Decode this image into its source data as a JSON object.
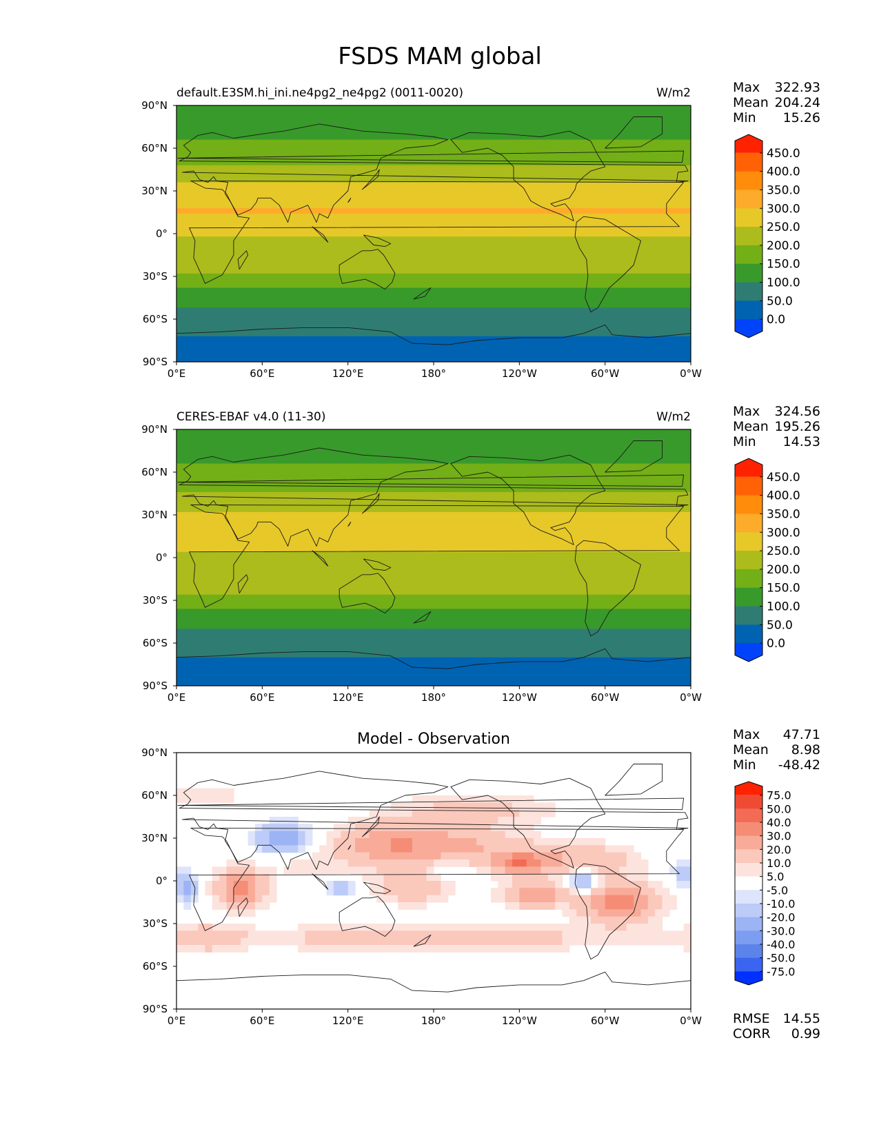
{
  "figure_title": "FSDS MAM global",
  "chart_data": [
    {
      "type": "heatmap",
      "title_left": "default.E3SM.hi_ini.ne4pg2_ne4pg2 (0011-0020)",
      "title_right": "W/m2",
      "stats": {
        "max_label": "Max",
        "max": "322.93",
        "mean_label": "Mean",
        "mean": "204.24",
        "min_label": "Min",
        "min": "15.26"
      },
      "x_ticks": [
        "0°E",
        "60°E",
        "120°E",
        "180°",
        "120°W",
        "60°W",
        "0°W"
      ],
      "y_ticks": [
        "90°N",
        "60°N",
        "30°N",
        "0°",
        "30°S",
        "60°S",
        "90°S"
      ],
      "xlim": [
        0,
        360
      ],
      "ylim": [
        -90,
        90
      ],
      "zonal_profile": {
        "lat": [
          90,
          75,
          65,
          55,
          45,
          35,
          25,
          15,
          5,
          -5,
          -15,
          -25,
          -35,
          -45,
          -55,
          -65,
          -75,
          -90
        ],
        "value": [
          130,
          140,
          150,
          175,
          215,
          255,
          290,
          305,
          270,
          240,
          235,
          215,
          160,
          130,
          90,
          70,
          40,
          30
        ]
      },
      "colorbar": {
        "levels": [
          "450.0",
          "400.0",
          "350.0",
          "300.0",
          "250.0",
          "200.0",
          "150.0",
          "100.0",
          "50.0",
          "0.0"
        ],
        "extend": "both"
      }
    },
    {
      "type": "heatmap",
      "title_left": "CERES-EBAF v4.0 (11-30)",
      "title_right": "W/m2",
      "stats": {
        "max_label": "Max",
        "max": "324.56",
        "mean_label": "Mean",
        "mean": "195.26",
        "min_label": "Min",
        "min": "14.53"
      },
      "x_ticks": [
        "0°E",
        "60°E",
        "120°E",
        "180°",
        "120°W",
        "60°W",
        "0°W"
      ],
      "y_ticks": [
        "90°N",
        "60°N",
        "30°N",
        "0°",
        "30°S",
        "60°S",
        "90°S"
      ],
      "xlim": [
        0,
        360
      ],
      "ylim": [
        -90,
        90
      ],
      "zonal_profile": {
        "lat": [
          90,
          75,
          65,
          55,
          45,
          35,
          25,
          15,
          5,
          -5,
          -15,
          -25,
          -35,
          -45,
          -55,
          -65,
          -75,
          -90
        ],
        "value": [
          130,
          140,
          150,
          170,
          205,
          240,
          275,
          285,
          250,
          225,
          225,
          205,
          150,
          120,
          85,
          60,
          40,
          30
        ]
      },
      "colorbar": {
        "levels": [
          "450.0",
          "400.0",
          "350.0",
          "300.0",
          "250.0",
          "200.0",
          "150.0",
          "100.0",
          "50.0",
          "0.0"
        ],
        "extend": "both"
      }
    },
    {
      "type": "heatmap",
      "title_center": "Model - Observation",
      "stats": {
        "max_label": "Max",
        "max": "47.71",
        "mean_label": "Mean",
        "mean": "8.98",
        "min_label": "Min",
        "min": "-48.42"
      },
      "x_ticks": [
        "0°E",
        "60°E",
        "120°E",
        "180°",
        "120°W",
        "60°W",
        "0°W"
      ],
      "y_ticks": [
        "90°N",
        "60°N",
        "30°N",
        "0°",
        "30°S",
        "60°S",
        "90°S"
      ],
      "xlim": [
        0,
        360
      ],
      "ylim": [
        -90,
        90
      ],
      "colorbar": {
        "levels": [
          "75.0",
          "50.0",
          "40.0",
          "30.0",
          "20.0",
          "10.0",
          "5.0",
          "-5.0",
          "-10.0",
          "-20.0",
          "-30.0",
          "-40.0",
          "-50.0",
          "-75.0"
        ],
        "extend": "both"
      },
      "metrics": {
        "rmse_label": "RMSE",
        "rmse": "14.55",
        "corr_label": "CORR",
        "corr": "0.99"
      }
    }
  ],
  "colors": {
    "abs_bins": [
      "#0043f8",
      "#0063b2",
      "#2f7d72",
      "#389a2a",
      "#73af17",
      "#abbc1c",
      "#e7c829",
      "#fdab2a",
      "#ff8c0b",
      "#ff6205",
      "#ff2200"
    ],
    "diff_bins": [
      "#0030ff",
      "#3b64f0",
      "#5b83ea",
      "#7c9df0",
      "#9cb4f3",
      "#bccbf7",
      "#dde4fb",
      "#ffffff",
      "#fde3dd",
      "#fbc8bc",
      "#f8ab98",
      "#f58d76",
      "#f26c55",
      "#ef4a33",
      "#ff2200"
    ]
  }
}
